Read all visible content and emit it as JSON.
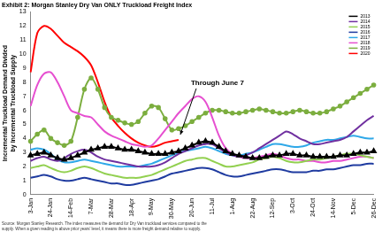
{
  "chart_data": {
    "type": "line",
    "title": "Exhibit 2: Morgan Stanley Dry Van ONLY Truckload Freight Index",
    "y_label": "Incremental Truckload Demand Divided by Incremental Truckload Supply",
    "source": "Source: Morgan Stanley Research. The index measures the demand for Dry Van truckload services compared to the supply. When a given reading is above prior years' level, it means there is more freight demand relative to supply.",
    "annotations": [
      {
        "text": "Through June 7"
      }
    ],
    "categories": [
      "3-Jan",
      null,
      null,
      "24-Jan",
      null,
      null,
      "14-Feb",
      null,
      null,
      "7-Mar",
      null,
      null,
      "28-Mar",
      null,
      null,
      "18-Apr",
      null,
      null,
      "9-May",
      null,
      null,
      "30-May",
      null,
      null,
      "20-Jun",
      null,
      null,
      "11-Jul",
      null,
      null,
      "1-Aug",
      null,
      null,
      "22-Aug",
      null,
      null,
      "12-Sep",
      null,
      null,
      "3-Oct",
      null,
      null,
      "24-Oct",
      null,
      null,
      "14-Nov",
      null,
      null,
      "5-Dec",
      null,
      null,
      "26-Dec"
    ],
    "ylim": [
      0,
      13
    ],
    "yticks": [
      0,
      1,
      2,
      3,
      4,
      5,
      6,
      7,
      8,
      9,
      10,
      11,
      12,
      13
    ],
    "grid": false,
    "legend": "upper right",
    "series": [
      {
        "name": "2013",
        "color": "#000000",
        "marker": "triangle",
        "values": [
          2.8,
          2.9,
          3.0,
          2.8,
          2.6,
          2.5,
          2.6,
          2.8,
          3.0,
          3.2,
          3.3,
          3.4,
          3.4,
          3.3,
          3.2,
          3.2,
          3.1,
          3.0,
          2.9,
          2.9,
          2.9,
          3.0,
          3.1,
          3.3,
          3.5,
          3.7,
          3.8,
          3.7,
          3.4,
          3.1,
          2.9,
          2.8,
          2.7,
          2.6,
          2.6,
          2.7,
          2.8,
          2.8,
          2.9,
          2.9,
          2.8,
          2.8,
          2.7,
          2.7,
          2.7,
          2.7,
          2.8,
          2.8,
          2.9,
          3.0,
          3.0,
          3.1
        ]
      },
      {
        "name": "2014",
        "color": "#7030a0",
        "values": [
          2.4,
          2.6,
          2.7,
          2.5,
          2.4,
          2.6,
          2.9,
          3.1,
          3.2,
          3.0,
          2.7,
          2.5,
          2.4,
          2.3,
          2.2,
          2.1,
          2.0,
          2.0,
          2.0,
          2.1,
          2.3,
          2.6,
          2.9,
          3.1,
          3.3,
          3.5,
          3.6,
          3.6,
          3.3,
          3.0,
          2.8,
          2.7,
          2.8,
          3.0,
          3.3,
          3.6,
          3.9,
          4.2,
          4.5,
          4.3,
          4.0,
          3.8,
          3.6,
          3.6,
          3.7,
          3.8,
          3.9,
          4.1,
          4.5,
          4.9,
          5.3,
          5.6
        ]
      },
      {
        "name": "2015",
        "color": "#92d050",
        "values": [
          1.9,
          2.0,
          2.1,
          1.9,
          1.7,
          1.6,
          1.7,
          1.9,
          2.0,
          1.9,
          1.7,
          1.5,
          1.4,
          1.3,
          1.2,
          1.2,
          1.2,
          1.3,
          1.4,
          1.6,
          1.8,
          2.0,
          2.2,
          2.4,
          2.5,
          2.6,
          2.6,
          2.4,
          2.2,
          2.0,
          2.0,
          2.1,
          2.2,
          2.3,
          2.5,
          2.6,
          2.7,
          2.6,
          2.4,
          2.3,
          2.3,
          2.4,
          2.5,
          2.5,
          2.6,
          2.7,
          2.8,
          2.9,
          2.9,
          2.8,
          2.7,
          2.6
        ]
      },
      {
        "name": "2016",
        "color": "#1f3ba0",
        "values": [
          1.2,
          1.3,
          1.4,
          1.3,
          1.1,
          1.0,
          1.0,
          1.1,
          1.2,
          1.1,
          1.0,
          0.9,
          0.8,
          0.8,
          0.7,
          0.7,
          0.8,
          0.9,
          1.0,
          1.1,
          1.3,
          1.5,
          1.6,
          1.7,
          1.8,
          1.9,
          1.9,
          1.8,
          1.6,
          1.4,
          1.3,
          1.3,
          1.4,
          1.5,
          1.6,
          1.7,
          1.8,
          1.8,
          1.7,
          1.6,
          1.6,
          1.6,
          1.7,
          1.7,
          1.8,
          1.8,
          1.9,
          2.0,
          2.1,
          2.1,
          2.2,
          2.2
        ]
      },
      {
        "name": "2017",
        "color": "#2fa8e8",
        "values": [
          3.2,
          3.3,
          3.2,
          2.9,
          2.5,
          2.3,
          2.3,
          2.4,
          2.5,
          2.4,
          2.3,
          2.2,
          2.1,
          2.0,
          2.0,
          2.0,
          2.0,
          2.1,
          2.2,
          2.4,
          2.6,
          2.8,
          3.0,
          3.1,
          3.2,
          3.3,
          3.4,
          3.3,
          3.1,
          2.9,
          2.8,
          2.8,
          2.9,
          3.0,
          3.2,
          3.4,
          3.6,
          3.6,
          3.5,
          3.4,
          3.4,
          3.5,
          3.7,
          3.8,
          3.9,
          3.9,
          4.0,
          4.1,
          4.2,
          4.1,
          4.0,
          4.0
        ]
      },
      {
        "name": "2018",
        "color": "#e64fd0",
        "values": [
          6.3,
          7.8,
          8.6,
          8.7,
          8.0,
          7.0,
          6.0,
          5.8,
          5.6,
          5.5,
          5.0,
          4.5,
          4.2,
          4.0,
          3.8,
          3.6,
          3.5,
          3.4,
          3.5,
          4.0,
          4.6,
          5.2,
          5.8,
          6.3,
          6.8,
          7.0,
          6.6,
          5.5,
          4.2,
          3.3,
          2.9,
          2.7,
          2.6,
          2.6,
          2.7,
          2.8,
          2.9,
          2.8,
          2.6,
          2.5,
          2.5,
          2.4,
          2.4,
          2.3,
          2.3,
          2.4,
          2.4,
          2.5,
          2.6,
          2.7,
          2.7,
          2.6
        ]
      },
      {
        "name": "2019",
        "color": "#7cae3f",
        "marker": "circle",
        "values": [
          3.8,
          4.3,
          4.6,
          4.0,
          3.7,
          3.5,
          3.8,
          5.5,
          7.5,
          8.3,
          7.5,
          6.2,
          5.5,
          5.3,
          5.1,
          5.0,
          5.2,
          5.8,
          6.3,
          6.2,
          5.4,
          4.6,
          4.7,
          4.9,
          5.2,
          5.5,
          5.8,
          6.0,
          6.0,
          5.9,
          5.8,
          5.8,
          5.9,
          6.0,
          6.1,
          6.0,
          5.9,
          5.8,
          5.8,
          5.9,
          6.0,
          5.9,
          5.8,
          5.8,
          5.9,
          6.1,
          6.3,
          6.6,
          6.9,
          7.2,
          7.5,
          7.8
        ]
      },
      {
        "name": "2020",
        "color": "#ff0000",
        "values": [
          8.7,
          11.5,
          12.0,
          11.8,
          11.3,
          10.8,
          10.5,
          10.2,
          9.8,
          9.2,
          8.0,
          6.6,
          5.5,
          4.9,
          4.4,
          4.0,
          3.7,
          3.5,
          3.4,
          3.5,
          3.7,
          3.8,
          3.9,
          null,
          null,
          null,
          null,
          null,
          null,
          null,
          null,
          null,
          null,
          null,
          null,
          null,
          null,
          null,
          null,
          null,
          null,
          null,
          null,
          null,
          null,
          null,
          null,
          null,
          null,
          null,
          null,
          null
        ]
      }
    ]
  }
}
